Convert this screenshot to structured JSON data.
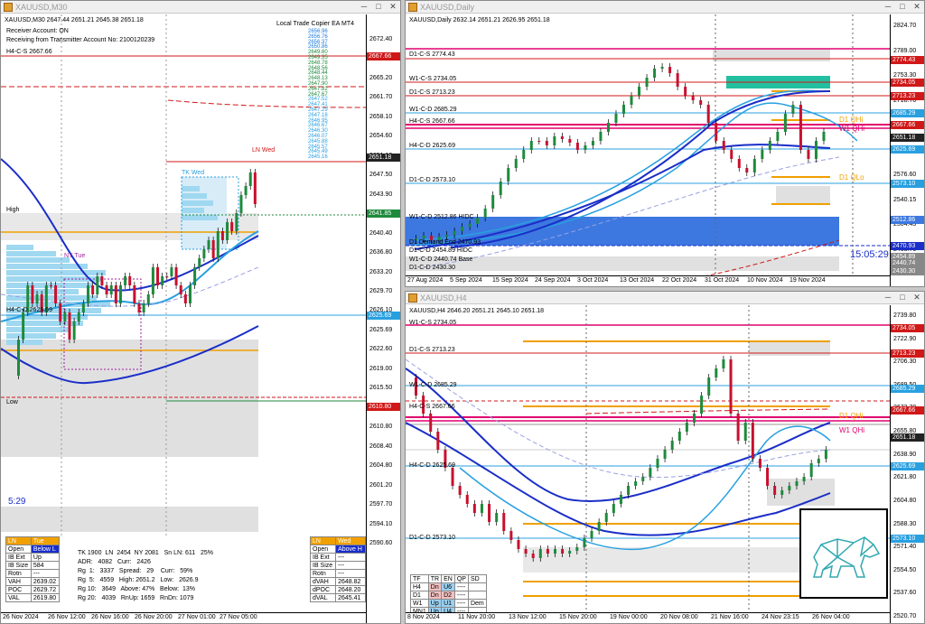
{
  "m30": {
    "title": "XAUUSD,M30",
    "header": "XAUUSD,M30  2647.44 2651.21 2645.38 2651.18",
    "ea": "Local Trade Copier EA MT4",
    "receiver": "Receiver Account: ON",
    "receiving": "Receiving from Transmitter Account No: 2100120239",
    "h4cs": "H4-C-S 2667.66",
    "h4cd": "H4-C-D 2625.69",
    "high": "High",
    "low": "Low",
    "ny": "NY Tue",
    "tk": "TK Wed",
    "ln": "LN Wed",
    "countdown": "5:29",
    "prices": [
      "2672.40",
      "2668.80",
      "2665.20",
      "2661.70",
      "2658.10",
      "2654.60",
      "2651.18",
      "2647.50",
      "2643.90",
      "2641.85",
      "2640.40",
      "2636.80",
      "2633.20",
      "2629.70",
      "2626.10",
      "2625.69",
      "2622.60",
      "2619.00",
      "2615.50",
      "2611.90",
      "2610.80",
      "2608.40",
      "2604.80",
      "2601.20",
      "2597.70",
      "2594.10",
      "2590.60"
    ],
    "tags": {
      "a": "2667.66",
      "b": "2651.18",
      "c": "2641.85",
      "d": "2625.69",
      "e": "2610.80"
    },
    "dates": [
      "26 Nov 2024",
      "26 Nov 12:00",
      "26 Nov 16:00",
      "26 Nov 20:00",
      "27 Nov 01:00",
      "27 Nov 05:00"
    ],
    "stats": {
      "l1": [
        "LN",
        "Tue"
      ],
      "l2": [
        "Open",
        "Below L"
      ],
      "l3": [
        "IB Ext",
        "Up"
      ],
      "l4": [
        "IB Size",
        "584"
      ],
      "l5": [
        "Rotn",
        "---"
      ],
      "l6": [
        "VAH",
        "2639.02"
      ],
      "l7": [
        "POC",
        "2629.72"
      ],
      "l8": [
        "VAL",
        "2619.80"
      ],
      "m1": "TK 1900  LN  2454  NY 2081   Sn LN: 611   25%",
      "m2": "ADR:   4082   Curr:   2426",
      "m3": "Rg  1:   3337   Spread:   29    Curr:   59%",
      "m4": "Rg  5:   4559   High: 2651.2   Low:   2626.9",
      "m5": "Rg 10:   3649   Above: 47%   Below:  13%",
      "m6": "Rg 20:   4039   RnUp: 1659   RnDn: 1079",
      "r1": [
        "LN",
        "Wed"
      ],
      "r2": [
        "Open",
        "Above H"
      ],
      "r3": [
        "IB Ext",
        "---"
      ],
      "r4": [
        "IB Size",
        "---"
      ],
      "r5": [
        "Rotn",
        "---"
      ],
      "r6": [
        "dVAH",
        "2648.82"
      ],
      "r7": [
        "dPOC",
        "2648.20"
      ],
      "r8": [
        "dVAL",
        "2645.41"
      ]
    },
    "ticklist": [
      "2656.96",
      "2656.76",
      "2656.37",
      "2650.86",
      "2649.60",
      "2649.35",
      "2648.78",
      "2648.56",
      "2648.44",
      "2648.13",
      "2647.90",
      "2647.82",
      "2647.67",
      "2647.52",
      "2647.41",
      "2647.29",
      "2647.18",
      "2646.95",
      "2646.67",
      "2646.30",
      "2646.07",
      "2645.88",
      "2645.57",
      "2645.49",
      "2645.16"
    ]
  },
  "daily": {
    "title": "XAUUSD,Daily",
    "header": "XAUUSD,Daily  2632.14 2651.21 2626.95 2651.18",
    "labels": [
      "D1-C-S 2774.43",
      "W1-C-S 2734.05",
      "D1-C-S 2713.23",
      "W1-C-D 2685.29",
      "H4-C-S 2667.66",
      "H4-C-D 2625.69",
      "D1-C-D 2573.10",
      "W1-C-D 2512.86 HIDC",
      "D1 Demand End 2470.93",
      "D1-C-D 2454.89 HIDC",
      "W1-C-D 2440.74 Base",
      "D1-C-D 2430.30"
    ],
    "d1hi": "D1 QHi",
    "w1hi": "W1 QHi",
    "d1lo": "D1 QLo",
    "timer": "15:05:29",
    "prices": [
      "2824.70",
      "2789.00",
      "2753.30",
      "2718.70",
      "2682.00",
      "2611.55",
      "2576.60",
      "2540.15",
      "2504.45",
      "2468.70",
      "2433.00"
    ],
    "tags": {
      "a": "2774.43",
      "b": "2734.05",
      "c": "2713.23",
      "d": "2685.29",
      "e": "2667.66",
      "f": "2651.18",
      "g": "2625.69",
      "h": "2573.10",
      "i": "2512.86",
      "j": "2470.93",
      "k": "2454.89",
      "l": "2440.74",
      "m": "2430.30"
    },
    "dates": [
      "27 Aug 2024",
      "5 Sep 2024",
      "15 Sep 2024",
      "24 Sep 2024",
      "3 Oct 2024",
      "13 Oct 2024",
      "22 Oct 2024",
      "31 Oct 2024",
      "10 Nov 2024",
      "19 Nov 2024"
    ]
  },
  "h4": {
    "title": "XAUUSD,H4",
    "header": "XAUUSD,H4  2646.20 2651.21 2645.10 2651.18",
    "labels": [
      "W1-C-S 2734.05",
      "D1-C-S 2713.23",
      "W1-C-D 2685.29",
      "H4-C-S 2667.66",
      "H4-C-D 2625.69",
      "D1-C-D 2573.10"
    ],
    "d1hi": "D1 QHi",
    "w1hi": "W1 QHi",
    "prices": [
      "2739.80",
      "2722.90",
      "2706.30",
      "2689.50",
      "2672.70",
      "2655.80",
      "2638.90",
      "2621.80",
      "2604.80",
      "2588.30",
      "2571.40",
      "2554.50",
      "2537.60",
      "2520.70"
    ],
    "tags": {
      "a": "2734.05",
      "b": "2713.23",
      "c": "2685.29",
      "d": "2667.66",
      "e": "2651.18",
      "f": "2625.69",
      "g": "2573.10"
    },
    "dates": [
      "8 Nov 2024",
      "11 Nov 20:00",
      "13 Nov 12:00",
      "15 Nov 20:00",
      "19 Nov 00:00",
      "20 Nov 08:00",
      "21 Nov 16:00",
      "24 Nov 23:15",
      "26 Nov 04:00"
    ],
    "trend": {
      "head": [
        "TF",
        "TR",
        "EN",
        "QP",
        "SD"
      ],
      "rows": [
        [
          "H4",
          "Dn",
          "U6",
          "----",
          ""
        ],
        [
          "D1",
          "Dn",
          "D2",
          "----",
          ""
        ],
        [
          "W1",
          "Up",
          "U1",
          "----",
          "Dem"
        ],
        [
          "MN1",
          "Up",
          "U4",
          "----",
          ""
        ]
      ]
    }
  },
  "colors": {
    "bull": "#1e8a3c",
    "bear": "#c8102e",
    "blueMA": "#1a2ec8",
    "cyanMA": "#28a0e0",
    "orange": "#f0a000",
    "magenta": "#e0006e",
    "red": "#d01818"
  }
}
